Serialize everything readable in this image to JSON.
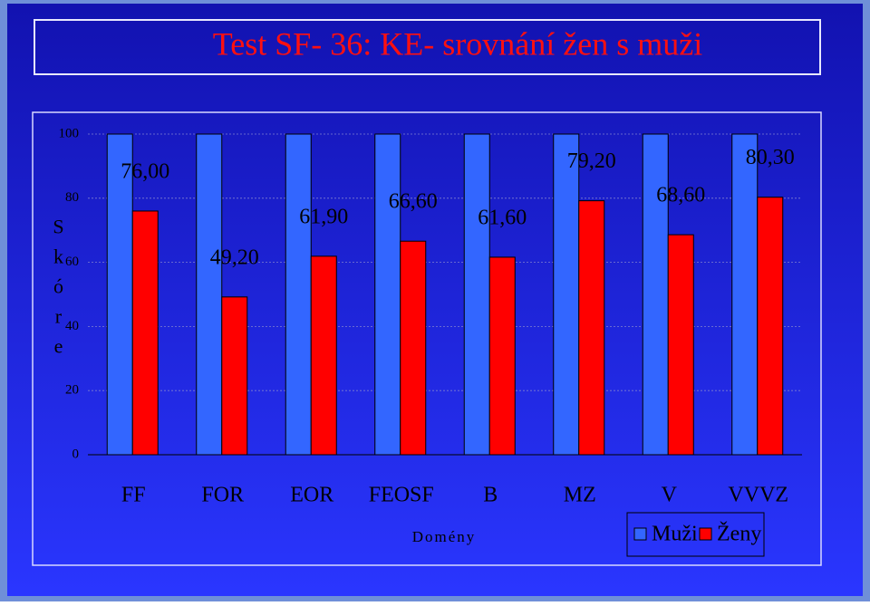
{
  "chart_data": {
    "type": "bar",
    "title": "Test SF- 36: KE- srovnání žen s muži",
    "y_label": "Skóre",
    "x_label": "Domény",
    "categories": [
      "FF",
      "FOR",
      "EOR",
      "FEOSF",
      "B",
      "MZ",
      "V",
      "VVVZ"
    ],
    "series": [
      {
        "name": "Muži",
        "color": "#3366ff",
        "values": [
          100,
          100,
          100,
          100,
          100,
          100,
          100,
          100
        ]
      },
      {
        "name": "Ženy",
        "color": "#ff0000",
        "values": [
          76,
          49.2,
          61.9,
          66.6,
          61.6,
          79.2,
          68.6,
          80.3
        ],
        "value_labels": [
          "76,00",
          "49,20",
          "61,90",
          "66,60",
          "61,60",
          "79,20",
          "68,60",
          "80,30"
        ]
      }
    ],
    "ylim": [
      0,
      100
    ],
    "yticks": [
      0,
      20,
      40,
      60,
      80,
      100
    ],
    "grid": true
  }
}
